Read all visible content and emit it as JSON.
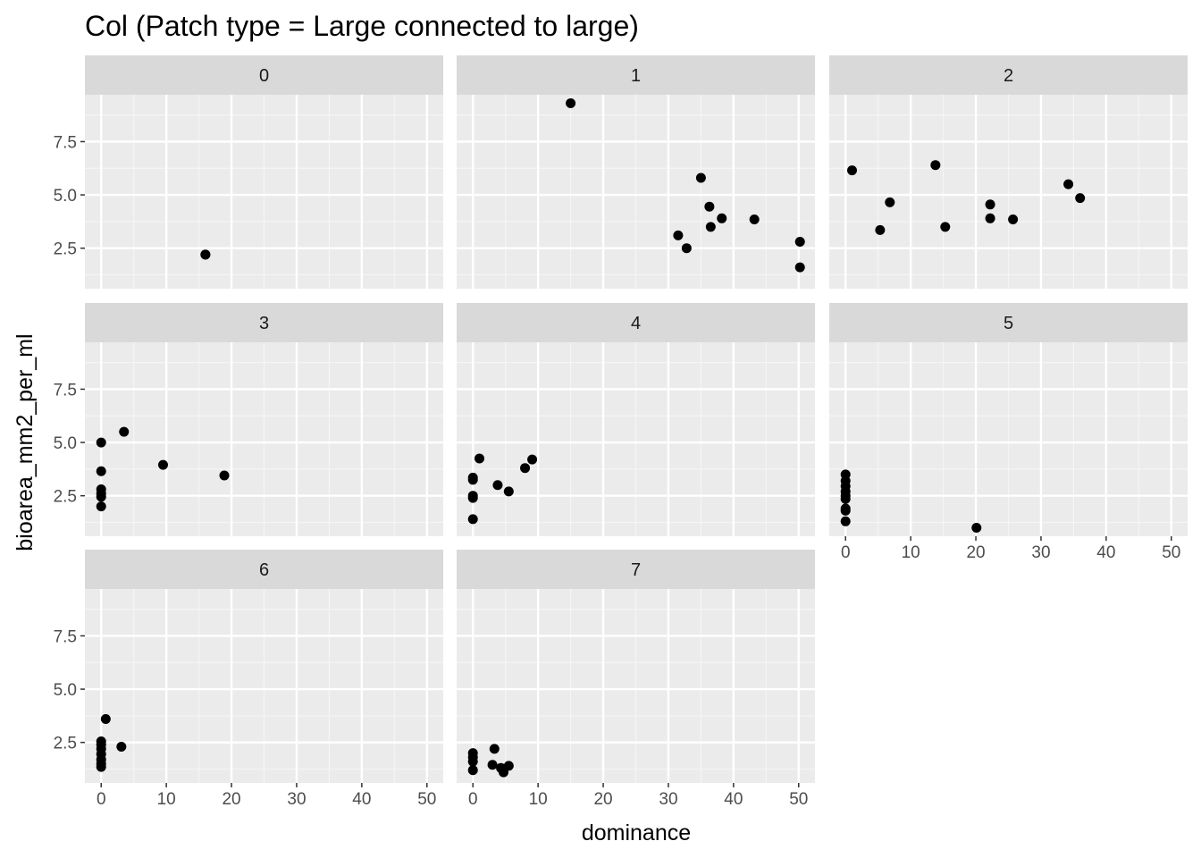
{
  "chart_data": {
    "type": "scatter",
    "title": "Col (Patch type = Large connected to large)",
    "xlabel": "dominance",
    "ylabel": "bioarea_mm2_per_ml",
    "xlim": [
      -2.5,
      52.5
    ],
    "ylim": [
      0.6,
      9.7
    ],
    "x_ticks": [
      0,
      10,
      20,
      30,
      40,
      50
    ],
    "y_ticks": [
      2.5,
      5.0,
      7.5
    ],
    "grid": true,
    "facet_variable": "day",
    "panels": [
      {
        "facet": "0",
        "points": [
          [
            16,
            2.2
          ],
          [
            16,
            2.2
          ]
        ]
      },
      {
        "facet": "1",
        "points": [
          [
            15,
            9.3
          ],
          [
            35,
            5.8
          ],
          [
            36.3,
            4.45
          ],
          [
            38.2,
            3.9
          ],
          [
            43.2,
            3.85
          ],
          [
            36.5,
            3.5
          ],
          [
            31.5,
            3.1
          ],
          [
            32.8,
            2.5
          ],
          [
            50.2,
            2.8
          ],
          [
            50.2,
            1.6
          ]
        ]
      },
      {
        "facet": "2",
        "points": [
          [
            1,
            6.15
          ],
          [
            13.8,
            6.4
          ],
          [
            34.2,
            5.5
          ],
          [
            36,
            4.85
          ],
          [
            6.8,
            4.65
          ],
          [
            22.2,
            4.55
          ],
          [
            22.2,
            3.9
          ],
          [
            25.7,
            3.85
          ],
          [
            15.3,
            3.5
          ],
          [
            5.3,
            3.35
          ]
        ]
      },
      {
        "facet": "3",
        "points": [
          [
            3.5,
            5.5
          ],
          [
            0,
            5.0
          ],
          [
            9.5,
            3.95
          ],
          [
            0,
            3.65
          ],
          [
            18.9,
            3.45
          ],
          [
            0,
            2.8
          ],
          [
            0,
            2.6
          ],
          [
            0,
            2.45
          ],
          [
            0,
            2.0
          ]
        ]
      },
      {
        "facet": "4",
        "points": [
          [
            1,
            4.25
          ],
          [
            9.1,
            4.2
          ],
          [
            8,
            3.8
          ],
          [
            0,
            3.35
          ],
          [
            0,
            3.25
          ],
          [
            3.8,
            3.0
          ],
          [
            5.5,
            2.7
          ],
          [
            0,
            2.5
          ],
          [
            0,
            2.4
          ],
          [
            0,
            1.4
          ]
        ]
      },
      {
        "facet": "5",
        "points": [
          [
            0,
            3.5
          ],
          [
            0,
            3.2
          ],
          [
            0,
            2.95
          ],
          [
            0,
            2.7
          ],
          [
            0,
            2.5
          ],
          [
            0,
            2.35
          ],
          [
            0,
            1.9
          ],
          [
            0,
            1.8
          ],
          [
            0,
            1.3
          ],
          [
            20.1,
            1.0
          ]
        ]
      },
      {
        "facet": "6",
        "points": [
          [
            0.7,
            3.6
          ],
          [
            0,
            2.55
          ],
          [
            0,
            2.4
          ],
          [
            3.1,
            2.3
          ],
          [
            0,
            2.2
          ],
          [
            0,
            1.95
          ],
          [
            0,
            1.7
          ],
          [
            0,
            1.5
          ],
          [
            0,
            1.35
          ]
        ]
      },
      {
        "facet": "7",
        "points": [
          [
            3.3,
            2.2
          ],
          [
            0,
            2.0
          ],
          [
            0,
            1.8
          ],
          [
            0,
            1.6
          ],
          [
            3,
            1.45
          ],
          [
            5.5,
            1.4
          ],
          [
            4.3,
            1.3
          ],
          [
            0,
            1.2
          ],
          [
            4.7,
            1.1
          ]
        ]
      }
    ]
  }
}
